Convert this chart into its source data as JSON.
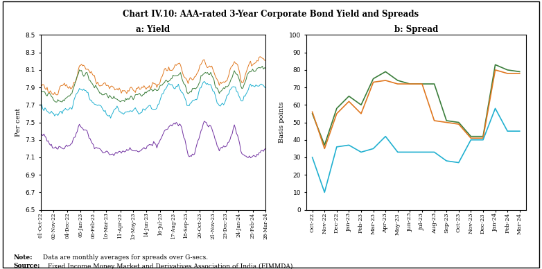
{
  "title": "Chart IV.10: AAA-rated 3-Year Corporate Bond Yield and Spreads",
  "note_bold": "Note:",
  "note_text": " Data are monthly averages for spreads over G-secs.",
  "source_bold": "Source:",
  "source_text": " Fixed Income Money Market and Derivatives Association of India (FIMMDA).",
  "panel_a_title": "a: Yield",
  "panel_b_title": "b: Spread",
  "panel_a_ylabel": "Per cent",
  "panel_b_ylabel": "Basis points",
  "yield_ylim": [
    6.5,
    8.5
  ],
  "yield_yticks": [
    6.5,
    6.7,
    6.9,
    7.1,
    7.3,
    7.5,
    7.7,
    7.9,
    8.1,
    8.3,
    8.5
  ],
  "spread_ylim": [
    0,
    100
  ],
  "spread_yticks": [
    0,
    10,
    20,
    30,
    40,
    50,
    60,
    70,
    80,
    90,
    100
  ],
  "colors": {
    "NBFCs": "#3a7d3a",
    "Corporates": "#e07820",
    "PSUs_FIs_Banks": "#20b0d0",
    "Gsec": "#7030a0"
  },
  "yield_xtick_labels": [
    "01-Oct-22",
    "02-Nov-22",
    "04-Dec-22",
    "05-Jan-23",
    "06-Feb-23",
    "10-Mar-23",
    "11-Apr-23",
    "13-May-23",
    "14-Jun-23",
    "16-Jul-23",
    "17-Aug-23",
    "18-Sep-23",
    "20-Oct-23",
    "21-Nov-23",
    "23-Dec-23",
    "24-Jan-24",
    "25-Feb-24",
    "28-Mar-24"
  ],
  "spread_xtick_labels": [
    "Oct-22",
    "Nov-22",
    "Dec-22",
    "Jan-23",
    "Feb-23",
    "Mar-23",
    "Apr-23",
    "May-23",
    "Jun-23",
    "Jul-23",
    "Aug-23",
    "Sep-23",
    "Oct-23",
    "Nov-23",
    "Dec-23",
    "Jan-24",
    "Feb-24",
    "Mar-24"
  ],
  "spread_labels": [
    "Oct-22",
    "Nov-22",
    "Dec-22",
    "Jan-23",
    "Feb-23",
    "Mar-23",
    "Apr-23",
    "May-23",
    "Jun-23",
    "Jul-23",
    "Aug-23",
    "Sep-23",
    "Oct-23",
    "Nov-23",
    "Dec-23",
    "Jan-24",
    "Feb-24",
    "Mar-24"
  ],
  "spread_NBFCs": [
    55,
    37,
    58,
    65,
    60,
    75,
    79,
    74,
    72,
    72,
    72,
    51,
    50,
    42,
    42,
    83,
    80,
    79
  ],
  "spread_Corporates": [
    56,
    35,
    55,
    62,
    55,
    73,
    74,
    72,
    72,
    72,
    51,
    50,
    49,
    41,
    41,
    80,
    78,
    78
  ],
  "spread_PSUs": [
    30,
    10,
    36,
    37,
    33,
    35,
    42,
    33,
    33,
    33,
    33,
    28,
    27,
    40,
    40,
    58,
    45,
    45
  ],
  "yield_monthly_corp": [
    7.95,
    7.88,
    7.82,
    7.88,
    7.9,
    8.18,
    8.15,
    7.95,
    7.88,
    7.88,
    7.88,
    7.88,
    7.88,
    7.88,
    7.92,
    7.92,
    8.1,
    8.12,
    8.15,
    7.95,
    8.0,
    8.2,
    8.15,
    7.92,
    8.0,
    8.2,
    7.98,
    8.2,
    8.22,
    8.22
  ],
  "yield_monthly_nbfc": [
    7.85,
    7.82,
    7.75,
    7.8,
    7.82,
    8.1,
    8.05,
    7.88,
    7.8,
    7.8,
    7.8,
    7.8,
    7.8,
    7.8,
    7.85,
    7.85,
    8.0,
    8.02,
    8.05,
    7.85,
    7.9,
    8.1,
    8.05,
    7.85,
    7.92,
    8.1,
    7.9,
    8.1,
    8.12,
    8.12
  ],
  "yield_monthly_psu": [
    7.72,
    7.65,
    7.58,
    7.62,
    7.65,
    7.92,
    7.82,
    7.68,
    7.62,
    7.62,
    7.62,
    7.62,
    7.62,
    7.62,
    7.68,
    7.68,
    7.88,
    7.9,
    7.92,
    7.7,
    7.75,
    7.95,
    7.88,
    7.68,
    7.75,
    7.92,
    7.72,
    7.9,
    7.92,
    7.92
  ],
  "yield_monthly_gsec": [
    7.38,
    7.3,
    7.2,
    7.22,
    7.25,
    7.5,
    7.35,
    7.2,
    7.15,
    7.15,
    7.15,
    7.15,
    7.18,
    7.18,
    7.22,
    7.22,
    7.42,
    7.45,
    7.48,
    7.18,
    7.22,
    7.52,
    7.48,
    7.2,
    7.25,
    7.48,
    7.1,
    7.12,
    7.15,
    7.2
  ]
}
